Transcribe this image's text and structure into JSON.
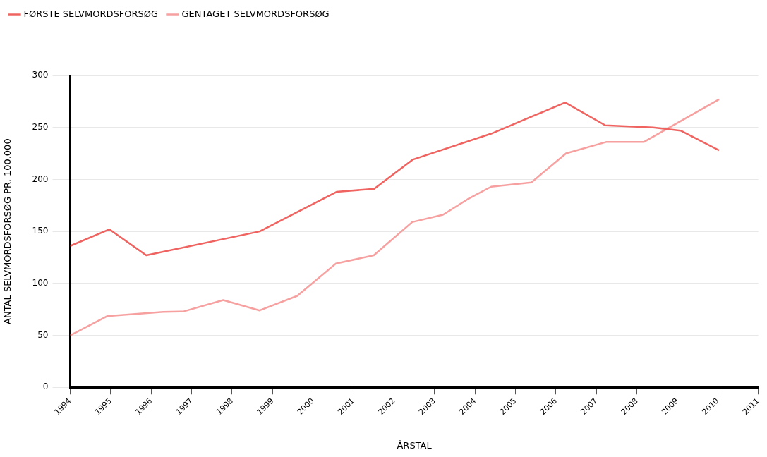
{
  "chart_data": {
    "type": "line",
    "xlabel": "ÅRSTAL",
    "ylabel": "ANTAL SELVMORDSFORSØG PR. 100.000",
    "xlim": [
      1994,
      2011
    ],
    "xticks": [
      1994,
      1995,
      1996,
      1997,
      1998,
      1999,
      2000,
      2001,
      2002,
      2003,
      2004,
      2005,
      2006,
      2007,
      2008,
      2009,
      2010,
      2011
    ],
    "ylim": [
      0,
      300
    ],
    "yticks": [
      0,
      50,
      100,
      150,
      200,
      250,
      300
    ],
    "grid": "y",
    "legend": "top left",
    "marker": "none",
    "line_style": "solid",
    "series": [
      {
        "name": "FØRSTE SELVMORDSFORSØG",
        "color": "#ef6461",
        "x": [
          1994,
          1994.97,
          1995.88,
          1998.68,
          2000.58,
          2001.51,
          2002.46,
          2004.4,
          2006.23,
          2007.22,
          2008.4,
          2009.08,
          2010.03
        ],
        "values": [
          136,
          152,
          127,
          150,
          188,
          191,
          219,
          244,
          274,
          252,
          250,
          247,
          228
        ]
      },
      {
        "name": "GENTAGET SELVMORDSFORSØG",
        "color": "#f7a0a0",
        "x": [
          1994,
          1994.91,
          1996.3,
          1996.8,
          1997.78,
          1998.68,
          1999.61,
          2000.56,
          2001.5,
          2002.45,
          2003.21,
          2003.82,
          2004.4,
          2005.39,
          2006.25,
          2007.24,
          2008.17,
          2010.03
        ],
        "values": [
          50,
          68.5,
          72.6,
          73,
          84,
          74,
          88,
          119,
          127,
          159,
          166,
          181,
          193,
          197,
          225,
          236,
          236,
          277
        ]
      }
    ]
  }
}
